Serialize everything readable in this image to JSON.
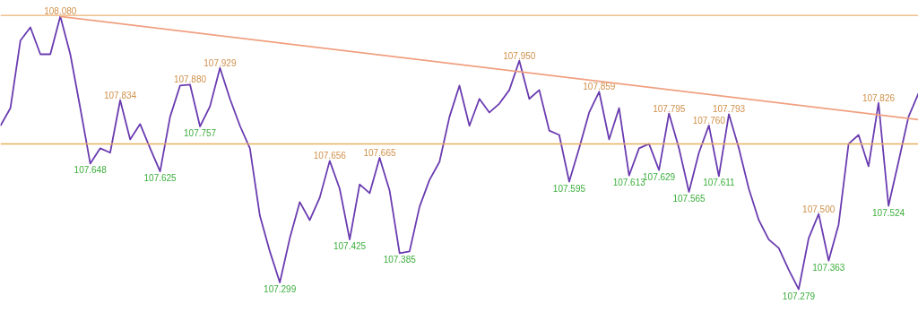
{
  "chart_data": {
    "type": "line",
    "categories": [
      null,
      null,
      null,
      null,
      null,
      null,
      null,
      null,
      null,
      null,
      null,
      null,
      null,
      null,
      null,
      null,
      null,
      null,
      null,
      null,
      null,
      null,
      null,
      null,
      null,
      null,
      null,
      null,
      null,
      null,
      null,
      null,
      null,
      null,
      null,
      null,
      null,
      null,
      null,
      null,
      null,
      null,
      null,
      null,
      null,
      null,
      null,
      null,
      null,
      null,
      null,
      null,
      null,
      null,
      null,
      null,
      null,
      null,
      null,
      null,
      null,
      null,
      null,
      null,
      null,
      null,
      null,
      null,
      null,
      null,
      null,
      null,
      null,
      null,
      null,
      null,
      null,
      null,
      null,
      null,
      null,
      null,
      null,
      null,
      null,
      null,
      null,
      null,
      null,
      null,
      null,
      null,
      null
    ],
    "series": [
      {
        "color": "#6a3cb0",
        "values": [
          107.759,
          107.811,
          108.009,
          108.048,
          107.969,
          107.969,
          108.08,
          107.969,
          107.811,
          107.648,
          107.693,
          107.68,
          107.834,
          107.719,
          107.764,
          107.693,
          107.625,
          107.785,
          107.877,
          107.88,
          107.757,
          107.816,
          107.929,
          107.838,
          107.759,
          107.693,
          107.495,
          107.39,
          107.299,
          107.429,
          107.535,
          107.482,
          107.548,
          107.656,
          107.574,
          107.425,
          107.587,
          107.561,
          107.665,
          107.569,
          107.385,
          107.39,
          107.521,
          107.6,
          107.653,
          107.785,
          107.877,
          107.759,
          107.838,
          107.798,
          107.824,
          107.864,
          107.95,
          107.838,
          107.864,
          107.745,
          107.732,
          107.595,
          107.693,
          107.798,
          107.859,
          107.719,
          107.811,
          107.613,
          107.693,
          107.706,
          107.629,
          107.795,
          107.693,
          107.565,
          107.68,
          107.76,
          107.611,
          107.793,
          107.693,
          107.574,
          107.482,
          107.425,
          107.4,
          107.336,
          107.279,
          107.429,
          107.5,
          107.363,
          107.469,
          107.706,
          107.732,
          107.64,
          107.826,
          107.524,
          107.653,
          107.785,
          107.854
        ],
        "value_labels": [
          null,
          null,
          null,
          null,
          null,
          null,
          "108.080",
          null,
          null,
          "107.648",
          null,
          null,
          "107.834",
          null,
          null,
          null,
          "107.625",
          null,
          null,
          "107.880",
          "107.757",
          null,
          "107.929",
          null,
          null,
          null,
          null,
          null,
          "107.299",
          null,
          null,
          null,
          null,
          "107.656",
          null,
          "107.425",
          null,
          null,
          "107.665",
          null,
          "107.385",
          null,
          null,
          null,
          null,
          null,
          null,
          null,
          null,
          null,
          null,
          null,
          "107.950",
          null,
          null,
          null,
          null,
          "107.595",
          null,
          null,
          "107.859",
          null,
          null,
          "107.613",
          null,
          null,
          "107.629",
          "107.795",
          null,
          "107.565",
          null,
          "107.760",
          "107.611",
          "107.793",
          null,
          null,
          null,
          null,
          null,
          null,
          "107.279",
          null,
          "107.500",
          "107.363",
          null,
          null,
          null,
          null,
          "107.826",
          "107.524",
          null,
          null,
          null
        ]
      },
      {
        "type": "line",
        "color": "#f0a080",
        "values": [
          null,
          null,
          null,
          null,
          null,
          null,
          108.08,
          null,
          null,
          null,
          null,
          null,
          null,
          null,
          null,
          null,
          null,
          null,
          null,
          null,
          null,
          null,
          null,
          null,
          null,
          null,
          null,
          null,
          null,
          null,
          null,
          null,
          null,
          null,
          null,
          null,
          null,
          null,
          null,
          null,
          null,
          null,
          null,
          null,
          null,
          null,
          null,
          null,
          null,
          null,
          null,
          null,
          null,
          null,
          null,
          null,
          null,
          null,
          null,
          null,
          null,
          null,
          null,
          null,
          null,
          null,
          null,
          null,
          null,
          null,
          null,
          null,
          null,
          null,
          null,
          null,
          null,
          null,
          null,
          null,
          null,
          null,
          null,
          null,
          null,
          null,
          null,
          null,
          null,
          null,
          null,
          null,
          107.777
        ]
      }
    ],
    "ref_lines": [
      {
        "axis": "y",
        "value": 108.083,
        "color": "#f0c090"
      },
      {
        "axis": "y",
        "value": 107.706,
        "color": "#e8b060"
      }
    ],
    "ylim": [
      107.158,
      108.127
    ],
    "tick_labels": false
  }
}
